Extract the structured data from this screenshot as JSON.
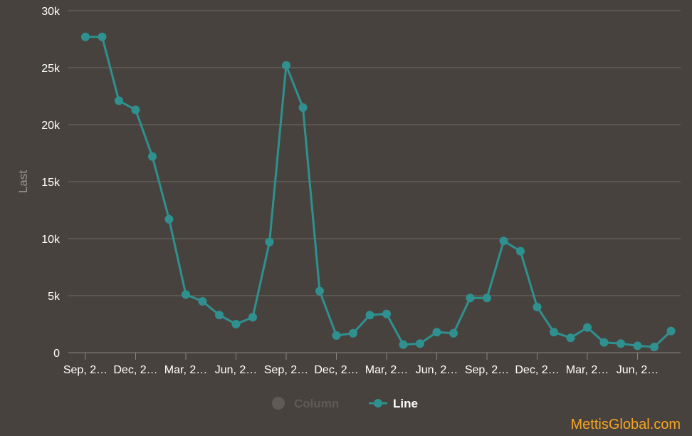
{
  "chart_data": {
    "type": "line",
    "ylabel": "Last",
    "ylim": [
      0,
      30000
    ],
    "y_ticks": [
      {
        "value": 0,
        "label": "0"
      },
      {
        "value": 5000,
        "label": "5k"
      },
      {
        "value": 10000,
        "label": "10k"
      },
      {
        "value": 15000,
        "label": "15k"
      },
      {
        "value": 20000,
        "label": "20k"
      },
      {
        "value": 25000,
        "label": "25k"
      },
      {
        "value": 30000,
        "label": "30k"
      }
    ],
    "x_tick_labels": [
      "Sep, 2…",
      "Dec, 2…",
      "Mar, 2…",
      "Jun, 2…",
      "Sep, 2…",
      "Dec, 2…",
      "Mar, 2…",
      "Jun, 2…",
      "Sep, 2…",
      "Dec, 2…",
      "Mar, 2…",
      "Jun, 2…"
    ],
    "grid": true,
    "legend": {
      "placement": "bottom-center",
      "items": [
        {
          "label": "Column",
          "active": false,
          "color": "#5f5a57"
        },
        {
          "label": "Line",
          "active": true,
          "color": "#2e9190"
        }
      ]
    },
    "series": [
      {
        "name": "Line",
        "color": "#2e9190",
        "values": [
          27700,
          27700,
          22100,
          21300,
          17200,
          11700,
          5100,
          4500,
          3300,
          2500,
          3100,
          9700,
          25200,
          21500,
          5400,
          1500,
          1700,
          3300,
          3400,
          700,
          800,
          1800,
          1700,
          4800,
          4800,
          9800,
          8900,
          4000,
          1800,
          1300,
          2200,
          900,
          800,
          600,
          500,
          1900
        ]
      }
    ]
  },
  "watermark": {
    "text": "MettisGlobal.com",
    "color": "#f5a623"
  }
}
